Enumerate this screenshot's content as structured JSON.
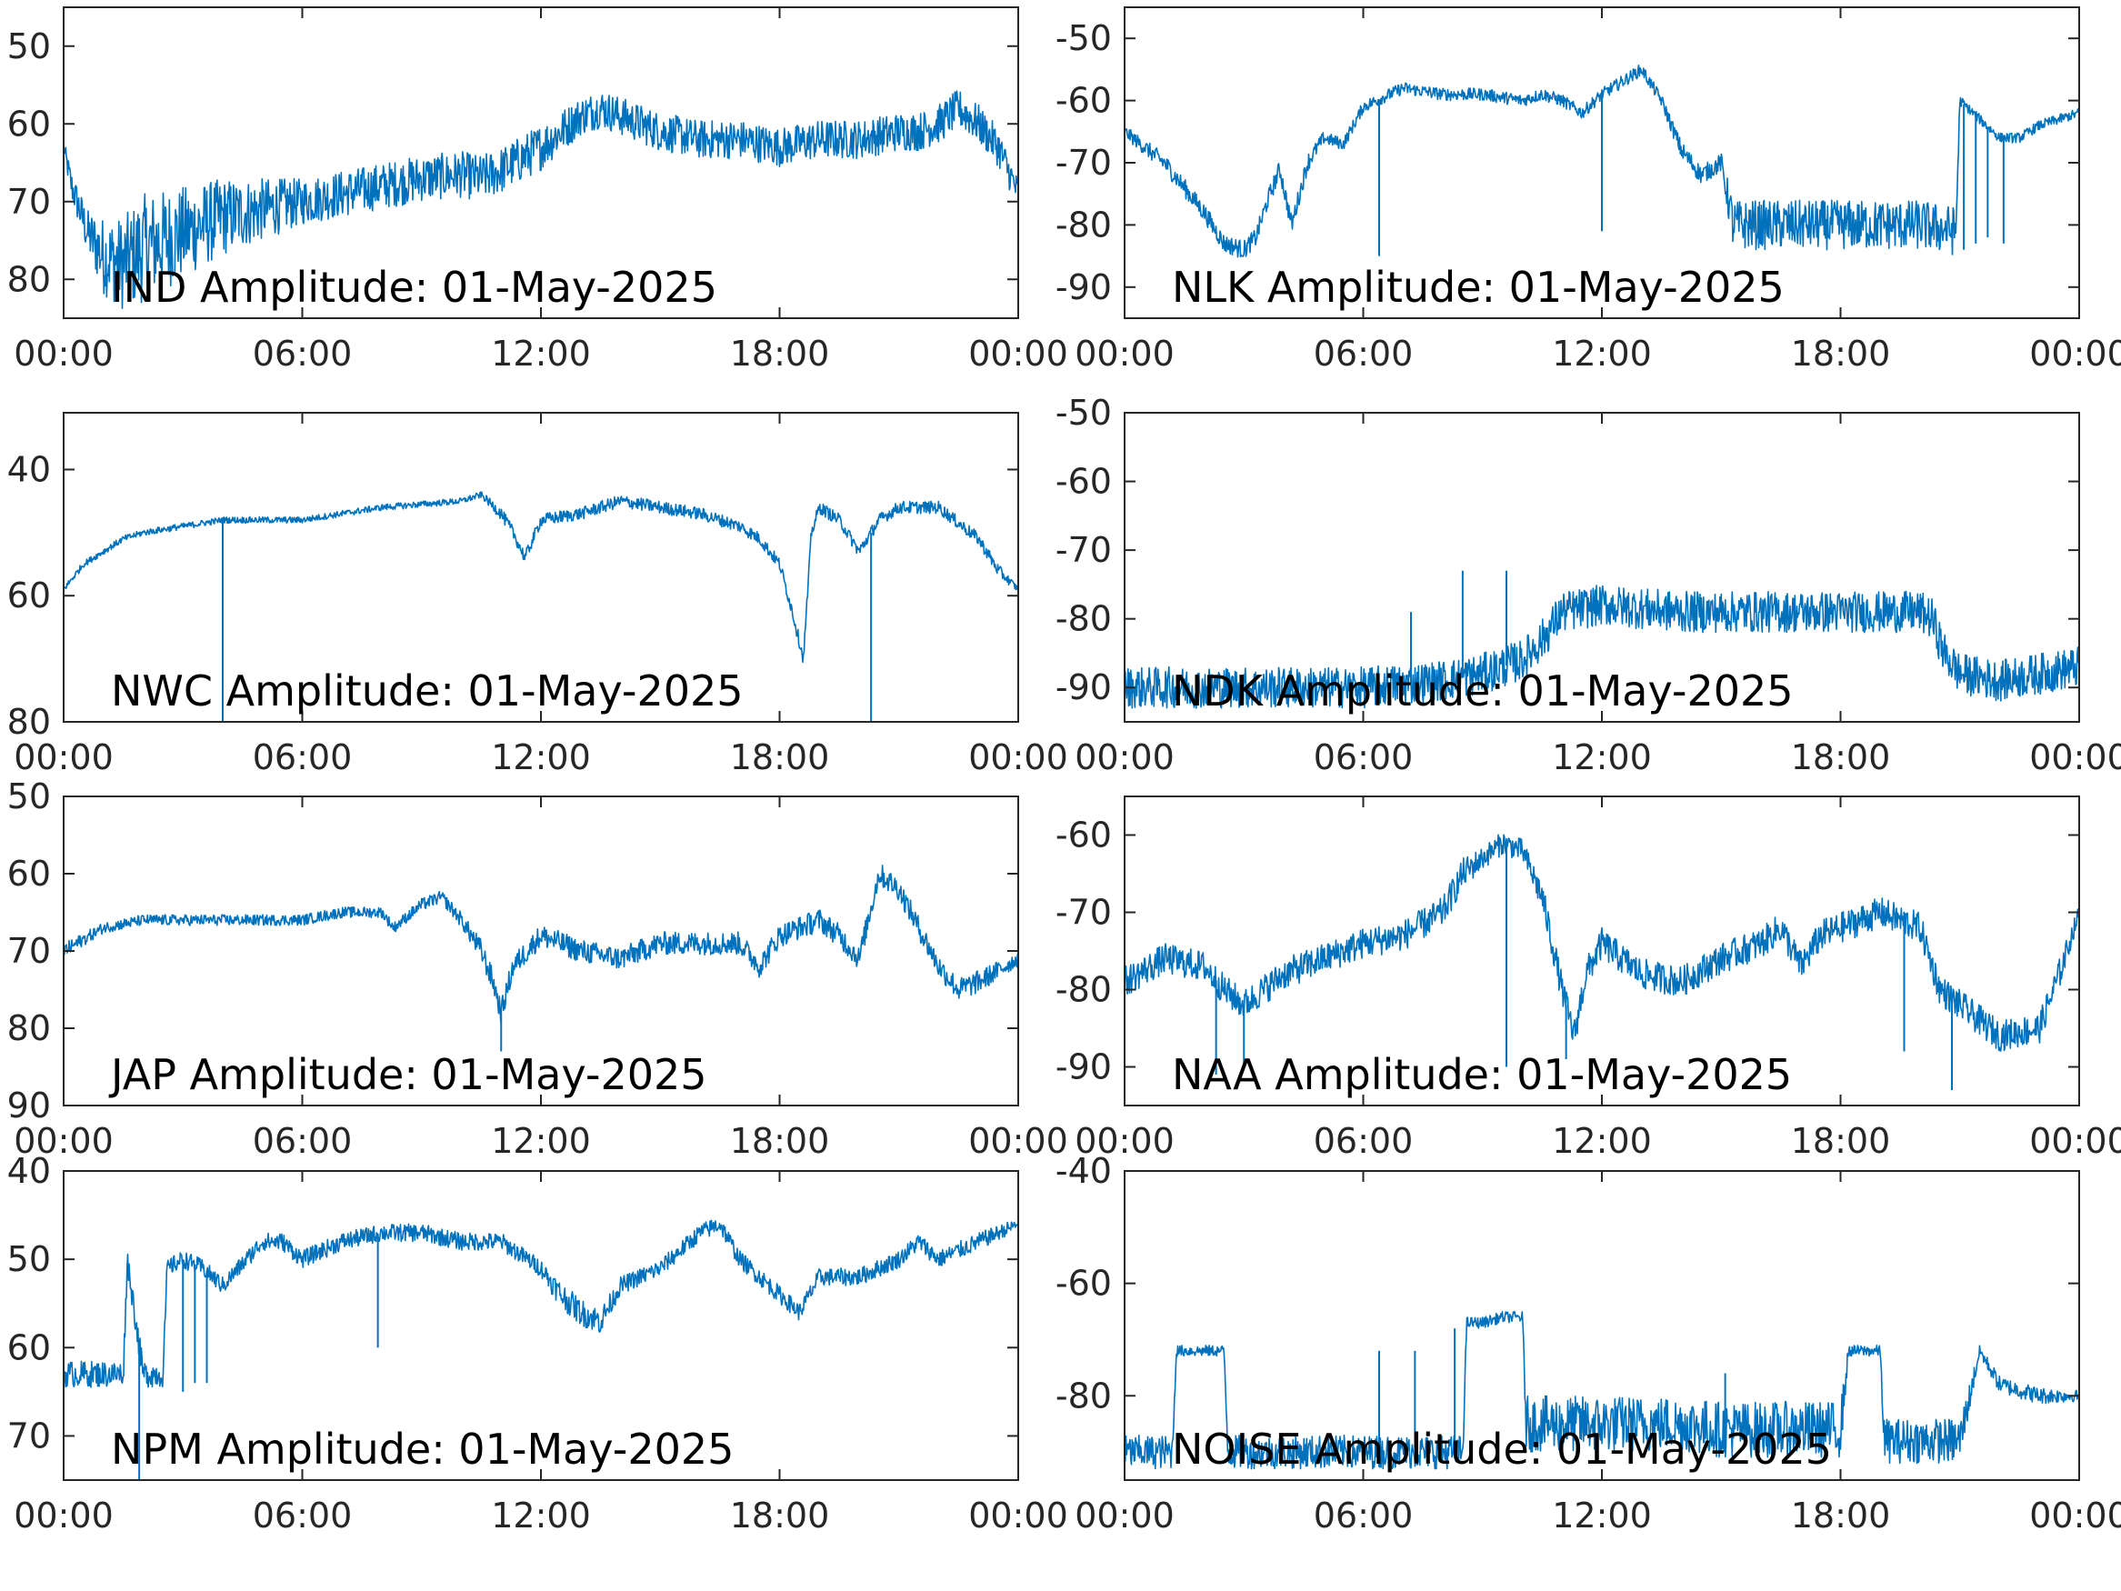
{
  "figure": {
    "line_color": "#0072BD",
    "background": "#ffffff"
  },
  "chart_data": [
    {
      "type": "line",
      "title": "IND Amplitude: 01-May-2025",
      "x_ticks": [
        "00:00",
        "06:00",
        "12:00",
        "18:00",
        "00:00"
      ],
      "y_ticks": [
        "50",
        "60",
        "70",
        "80"
      ],
      "ylim": [
        -85,
        -45
      ],
      "grid": false,
      "series": [
        {
          "x_hours": [
            0,
            0.2,
            0.6,
            1,
            1.5,
            2,
            3,
            4,
            5,
            6,
            7,
            8,
            9,
            10,
            10.5,
            11,
            12,
            13,
            13.5,
            14,
            15,
            16,
            17,
            18,
            19,
            20,
            21,
            21.5,
            22,
            22.5,
            23,
            23.5,
            24
          ],
          "center": [
            -63,
            -68,
            -74,
            -77,
            -78,
            -76,
            -74,
            -72,
            -71,
            -70,
            -69,
            -68,
            -67,
            -66.5,
            -67,
            -66,
            -63,
            -59,
            -58,
            -59,
            -61,
            -62,
            -62,
            -63,
            -62,
            -62,
            -61,
            -61,
            -60,
            -58,
            -60,
            -63,
            -69
          ],
          "band": [
            1,
            2,
            3,
            5,
            6,
            7,
            6,
            5,
            4,
            3,
            3,
            3,
            3,
            3,
            3,
            3,
            3,
            2.5,
            2.5,
            2.5,
            2.5,
            2.5,
            2.5,
            2.5,
            2.5,
            2.5,
            2.5,
            2.5,
            2.5,
            2.5,
            2.5,
            2.5,
            2
          ]
        }
      ]
    },
    {
      "type": "line",
      "title": "NLK Amplitude: 01-May-2025",
      "x_ticks": [
        "00:00",
        "06:00",
        "12:00",
        "18:00",
        "00:00"
      ],
      "y_ticks": [
        "-50",
        "-60",
        "-70",
        "-80",
        "-90"
      ],
      "ylim": [
        -95,
        -45
      ],
      "grid": false,
      "series": [
        {
          "x_hours": [
            0,
            1,
            2,
            2.5,
            3,
            3.3,
            3.6,
            3.9,
            4.2,
            4.6,
            5,
            5.5,
            6,
            7,
            8,
            9,
            10,
            10.5,
            11,
            11.5,
            12,
            12.5,
            13,
            13.5,
            14,
            14.5,
            15,
            15.3,
            16,
            17,
            18,
            19,
            20,
            20.9,
            21,
            21.5,
            22,
            22.5,
            23,
            24
          ],
          "center": [
            -65,
            -70,
            -78,
            -83,
            -84,
            -82,
            -76,
            -71,
            -80,
            -70,
            -66,
            -67,
            -61,
            -58,
            -59,
            -59,
            -60,
            -59,
            -60,
            -62,
            -59,
            -57,
            -55,
            -60,
            -68,
            -72,
            -70,
            -80,
            -80,
            -80,
            -80,
            -80,
            -80,
            -81,
            -60,
            -63,
            -66,
            -66,
            -64,
            -62
          ],
          "band": [
            1,
            1.5,
            1.5,
            1.5,
            1.5,
            1.5,
            1.5,
            1.5,
            1.5,
            1.5,
            1,
            1,
            1,
            1,
            1,
            1,
            1,
            1,
            1,
            1,
            1,
            1,
            1,
            1,
            1.5,
            1.5,
            1.5,
            4,
            4,
            4,
            4,
            4,
            4,
            4,
            0.8,
            0.8,
            0.8,
            0.8,
            0.8,
            0.8
          ]
        }
      ],
      "spikes": [
        {
          "x_hour": 6.4,
          "y": -85
        },
        {
          "x_hour": 12,
          "y": -81
        },
        {
          "x_hour": 21.1,
          "y": -84
        },
        {
          "x_hour": 21.4,
          "y": -83
        },
        {
          "x_hour": 21.7,
          "y": -82
        },
        {
          "x_hour": 22.1,
          "y": -83
        }
      ]
    },
    {
      "type": "line",
      "title": "NWC Amplitude: 01-May-2025",
      "x_ticks": [
        "00:00",
        "06:00",
        "12:00",
        "18:00",
        "00:00"
      ],
      "y_ticks": [
        "40",
        "60",
        "80"
      ],
      "ylim": [
        -80,
        -31
      ],
      "grid": false,
      "series": [
        {
          "x_hours": [
            0,
            0.5,
            1,
            1.5,
            2,
            3,
            4,
            5,
            6,
            7,
            8,
            9,
            10,
            10.5,
            11,
            11.3,
            11.6,
            12,
            13,
            14,
            15,
            16,
            17,
            17.5,
            18,
            18.3,
            18.6,
            18.8,
            19,
            19.5,
            20,
            20.5,
            21,
            22,
            23,
            23.5,
            24
          ],
          "center": [
            -59,
            -55,
            -53,
            -51,
            -50,
            -49,
            -48,
            -48,
            -48,
            -47,
            -46,
            -45.5,
            -45,
            -44,
            -47,
            -50,
            -54,
            -48,
            -47,
            -45,
            -46,
            -47,
            -49,
            -51,
            -55,
            -62,
            -70,
            -50,
            -46,
            -48,
            -53,
            -48,
            -46,
            -46,
            -51,
            -56,
            -59
          ],
          "band": [
            0.5,
            0.5,
            0.5,
            0.5,
            0.5,
            0.5,
            0.5,
            0.5,
            0.5,
            0.5,
            0.5,
            0.5,
            0.5,
            0.5,
            1,
            1,
            1,
            1,
            1,
            1,
            1,
            1,
            1,
            1,
            1,
            1,
            1,
            1,
            1,
            1,
            1,
            1,
            1,
            1,
            1,
            1,
            0.5
          ]
        }
      ],
      "spikes": [
        {
          "x_hour": 4,
          "y": -80
        },
        {
          "x_hour": 20.3,
          "y": -80
        }
      ]
    },
    {
      "type": "line",
      "title": "NDK Amplitude: 01-May-2025",
      "x_ticks": [
        "00:00",
        "06:00",
        "12:00",
        "18:00",
        "00:00"
      ],
      "y_ticks": [
        "-50",
        "-60",
        "-70",
        "-80",
        "-90"
      ],
      "ylim": [
        -95,
        -50
      ],
      "grid": false,
      "series": [
        {
          "x_hours": [
            0,
            2,
            4,
            6,
            8,
            9,
            10,
            10.5,
            11,
            12,
            14,
            16,
            18,
            19,
            20,
            20.3,
            20.6,
            21,
            22,
            23,
            24
          ],
          "center": [
            -90,
            -90,
            -90,
            -90,
            -89,
            -88,
            -86,
            -83,
            -79,
            -78,
            -79,
            -79,
            -79,
            -79,
            -79,
            -80,
            -85,
            -88,
            -89,
            -88,
            -87
          ],
          "band": [
            3,
            3,
            3,
            3,
            3,
            3,
            3,
            3,
            3,
            3,
            3,
            3,
            3,
            3,
            3,
            3,
            3,
            3,
            3,
            3,
            3
          ]
        }
      ],
      "spikes": [
        {
          "x_hour": 8.5,
          "y": -73
        },
        {
          "x_hour": 9.6,
          "y": -73
        },
        {
          "x_hour": 7.2,
          "y": -79
        }
      ]
    },
    {
      "type": "line",
      "title": "JAP Amplitude: 01-May-2025",
      "x_ticks": [
        "00:00",
        "06:00",
        "12:00",
        "18:00",
        "00:00"
      ],
      "y_ticks": [
        "50",
        "60",
        "70",
        "80",
        "90"
      ],
      "ylim": [
        -90,
        -50
      ],
      "grid": false,
      "series": [
        {
          "x_hours": [
            0,
            1,
            2,
            3,
            4,
            5,
            6,
            7,
            8,
            8.3,
            9,
            9.5,
            10,
            10.5,
            10.8,
            11,
            11.3,
            12,
            13,
            14,
            15,
            16,
            17,
            17.5,
            18,
            19,
            19.5,
            20,
            20.5,
            21,
            22,
            22.5,
            23,
            24
          ],
          "center": [
            -70,
            -67,
            -66,
            -66,
            -66,
            -66,
            -66,
            -65,
            -65,
            -67,
            -64,
            -63,
            -66,
            -70,
            -74,
            -78,
            -72,
            -68,
            -70,
            -71,
            -69,
            -69,
            -69,
            -72,
            -68,
            -66,
            -68,
            -71,
            -60,
            -62,
            -72,
            -75,
            -74,
            -71
          ],
          "band": [
            1,
            0.7,
            0.7,
            0.7,
            0.7,
            0.7,
            0.7,
            0.7,
            0.7,
            0.7,
            0.8,
            0.8,
            1,
            1.5,
            1.5,
            1.5,
            1.5,
            1.5,
            1.5,
            1.5,
            1.5,
            1.5,
            1.5,
            1.5,
            1.5,
            1.5,
            1.5,
            1.5,
            1.5,
            1.5,
            1.5,
            1.5,
            1.5,
            1
          ]
        }
      ],
      "spikes": [
        {
          "x_hour": 11,
          "y": -83
        }
      ]
    },
    {
      "type": "line",
      "title": "NAA Amplitude: 01-May-2025",
      "x_ticks": [
        "00:00",
        "06:00",
        "12:00",
        "18:00",
        "00:00"
      ],
      "y_ticks": [
        "-60",
        "-70",
        "-80",
        "-90"
      ],
      "ylim": [
        -95,
        -55
      ],
      "grid": false,
      "series": [
        {
          "x_hours": [
            0,
            1,
            2,
            2.5,
            3,
            3.5,
            4,
            5,
            6,
            7,
            8,
            8.5,
            9,
            9.5,
            10,
            10.5,
            11,
            11.3,
            11.6,
            12,
            13,
            14,
            15,
            16,
            16.5,
            17,
            17.5,
            18,
            19,
            20,
            20.5,
            21,
            22,
            23,
            23.5,
            24
          ],
          "center": [
            -79,
            -76,
            -77,
            -80,
            -82,
            -80,
            -78,
            -76,
            -74,
            -73,
            -70,
            -65,
            -63,
            -61,
            -62,
            -68,
            -80,
            -86,
            -78,
            -74,
            -78,
            -79,
            -76,
            -74,
            -72,
            -77,
            -73,
            -72,
            -70,
            -72,
            -80,
            -82,
            -86,
            -85,
            -78,
            -70
          ],
          "band": [
            2,
            2,
            2,
            2,
            2,
            2,
            2,
            2,
            2,
            2,
            2,
            2,
            1.5,
            1.5,
            1.5,
            2,
            2,
            2,
            2,
            2,
            2,
            2,
            2,
            2,
            2,
            2,
            2,
            2,
            2,
            2,
            2,
            2,
            2,
            2,
            2,
            1
          ]
        }
      ],
      "spikes": [
        {
          "x_hour": 2.3,
          "y": -91
        },
        {
          "x_hour": 3,
          "y": -90
        },
        {
          "x_hour": 9.6,
          "y": -90
        },
        {
          "x_hour": 11.1,
          "y": -89
        },
        {
          "x_hour": 19.6,
          "y": -88
        },
        {
          "x_hour": 20.8,
          "y": -93
        }
      ]
    },
    {
      "type": "line",
      "title": "NPM Amplitude: 01-May-2025",
      "x_ticks": [
        "00:00",
        "06:00",
        "12:00",
        "18:00",
        "00:00"
      ],
      "y_ticks": [
        "40",
        "50",
        "60",
        "70"
      ],
      "ylim": [
        -75,
        -40
      ],
      "grid": false,
      "series": [
        {
          "x_hours": [
            0,
            0.8,
            1.5,
            1.6,
            2.0,
            2.5,
            2.6,
            3,
            3.5,
            4,
            5,
            5.5,
            6,
            7,
            8,
            9,
            10,
            11,
            12,
            12.5,
            13,
            13.5,
            14,
            15,
            16,
            16.5,
            17,
            18,
            18.5,
            19,
            20,
            21,
            21.5,
            22,
            23,
            24
          ],
          "center": [
            -63,
            -63,
            -63,
            -50,
            -63,
            -63,
            -51,
            -50,
            -51,
            -53,
            -48,
            -48,
            -50,
            -48,
            -47,
            -47,
            -48,
            -48,
            -51,
            -54,
            -56,
            -57,
            -53,
            -51,
            -47,
            -46,
            -50,
            -54,
            -56,
            -52,
            -52,
            -50,
            -48,
            -50,
            -48,
            -46
          ],
          "band": [
            1.5,
            1.5,
            1.5,
            1.5,
            1.5,
            1.5,
            1,
            1,
            1,
            1,
            1,
            1,
            1,
            1,
            1,
            1,
            1,
            1,
            1,
            1.5,
            1.5,
            1.5,
            1,
            1,
            1,
            1,
            1,
            1,
            1,
            1,
            1,
            1,
            1,
            1,
            1,
            0.7
          ]
        }
      ],
      "spikes": [
        {
          "x_hour": 1.9,
          "y": -75
        },
        {
          "x_hour": 3.0,
          "y": -65
        },
        {
          "x_hour": 3.3,
          "y": -64
        },
        {
          "x_hour": 3.6,
          "y": -64
        },
        {
          "x_hour": 7.9,
          "y": -60
        }
      ]
    },
    {
      "type": "line",
      "title": "NOISE Amplitude: 01-May-2025",
      "x_ticks": [
        "00:00",
        "06:00",
        "12:00",
        "18:00",
        "00:00"
      ],
      "y_ticks": [
        "-40",
        "-60",
        "-80"
      ],
      "ylim": [
        -95,
        -40
      ],
      "grid": false,
      "series": [
        {
          "x_hours": [
            0,
            1.2,
            1.3,
            2.5,
            2.6,
            4,
            5,
            7,
            8,
            8.5,
            8.6,
            9,
            9.5,
            10,
            10.1,
            12,
            14,
            15,
            16,
            18,
            18.2,
            19,
            19.1,
            21,
            21.5,
            22,
            23,
            24
          ],
          "center": [
            -90,
            -90,
            -72,
            -72,
            -90,
            -90,
            -90,
            -90,
            -90,
            -90,
            -67,
            -67,
            -66,
            -66,
            -85,
            -85,
            -85,
            -86,
            -86,
            -86,
            -72,
            -72,
            -88,
            -88,
            -72,
            -78,
            -80,
            -80
          ],
          "band": [
            3,
            3,
            1,
            1,
            3,
            3,
            3,
            3,
            3,
            3,
            1,
            1,
            1,
            1,
            5,
            5,
            5,
            5,
            5,
            5,
            1,
            1,
            4,
            4,
            1,
            1.5,
            1.5,
            1
          ]
        }
      ],
      "spikes": [
        {
          "x_hour": 6.4,
          "y": -72
        },
        {
          "x_hour": 7.3,
          "y": -72
        },
        {
          "x_hour": 8.3,
          "y": -68
        },
        {
          "x_hour": 15.1,
          "y": -76
        }
      ]
    }
  ]
}
